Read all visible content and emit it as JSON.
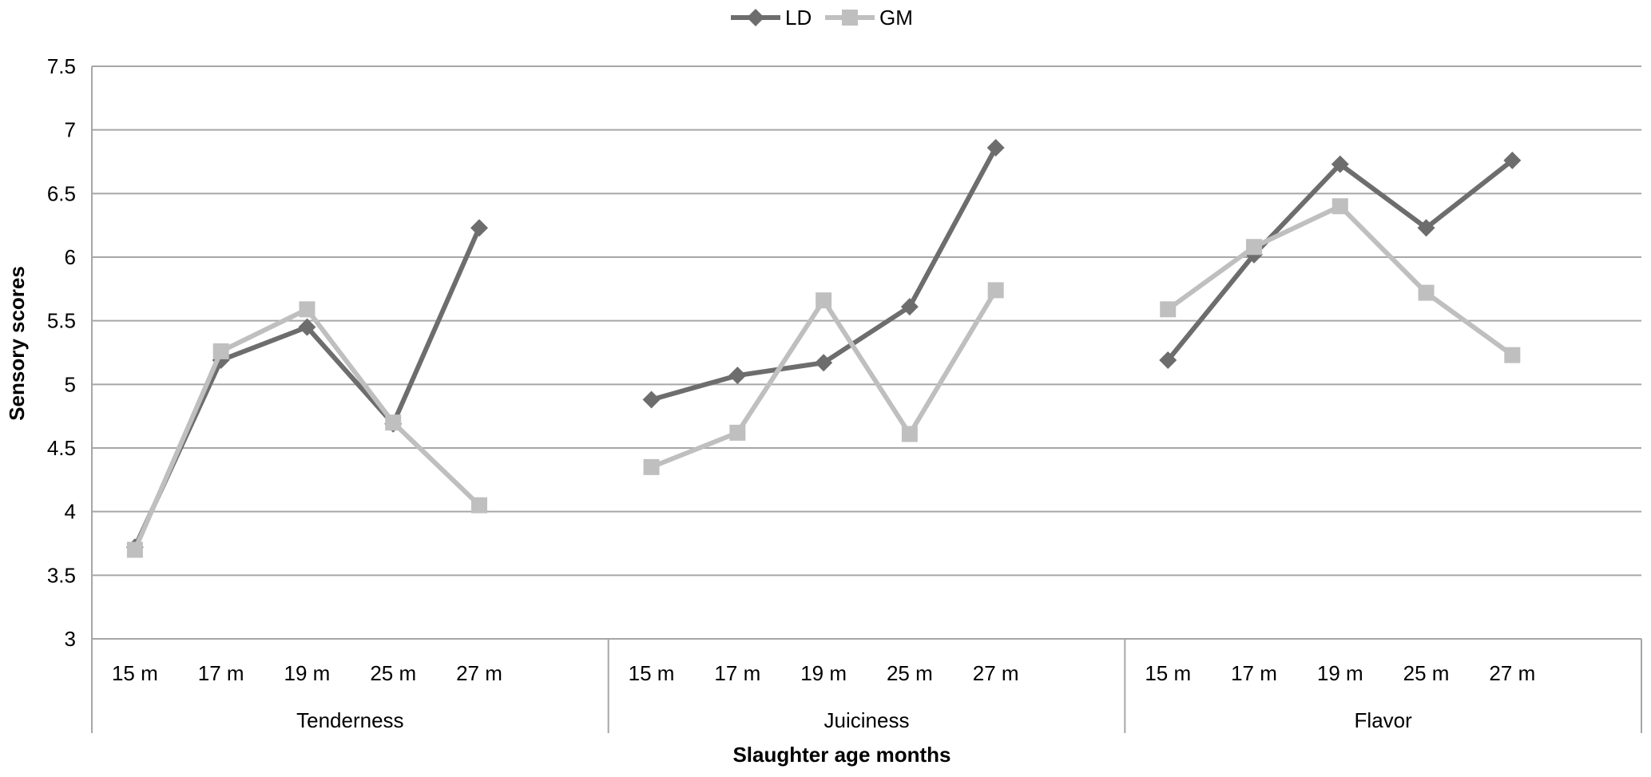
{
  "chart_data": {
    "type": "line",
    "title": "",
    "xlabel": "Slaughter age months",
    "ylabel": "Sensory scores",
    "ylim": [
      3,
      7.5
    ],
    "y_ticks": [
      "3",
      "3.5",
      "4",
      "4.5",
      "5",
      "5.5",
      "6",
      "6.5",
      "7",
      "7.5"
    ],
    "groups": [
      {
        "name": "Tenderness",
        "categories": [
          "15 m",
          "17 m",
          "19 m",
          "25 m",
          "27 m"
        ]
      },
      {
        "name": "Juiciness",
        "categories": [
          "15 m",
          "17 m",
          "19 m",
          "25 m",
          "27 m"
        ]
      },
      {
        "name": "Flavor",
        "categories": [
          "15 m",
          "17 m",
          "19 m",
          "25 m",
          "27 m"
        ]
      }
    ],
    "series": [
      {
        "name": "LD",
        "color": "#6d6d6d",
        "marker": "diamond",
        "values": [
          [
            3.72,
            5.19,
            5.45,
            4.69,
            6.23
          ],
          [
            4.88,
            5.07,
            5.17,
            5.61,
            6.86
          ],
          [
            5.19,
            6.02,
            6.73,
            6.23,
            6.76
          ]
        ]
      },
      {
        "name": "GM",
        "color": "#bfbfbf",
        "marker": "square",
        "values": [
          [
            3.7,
            5.26,
            5.59,
            4.7,
            4.05
          ],
          [
            4.35,
            4.62,
            5.66,
            4.61,
            5.74
          ],
          [
            5.59,
            6.08,
            6.4,
            5.72,
            5.23
          ]
        ]
      }
    ],
    "grid": true,
    "legend": "top-center"
  }
}
